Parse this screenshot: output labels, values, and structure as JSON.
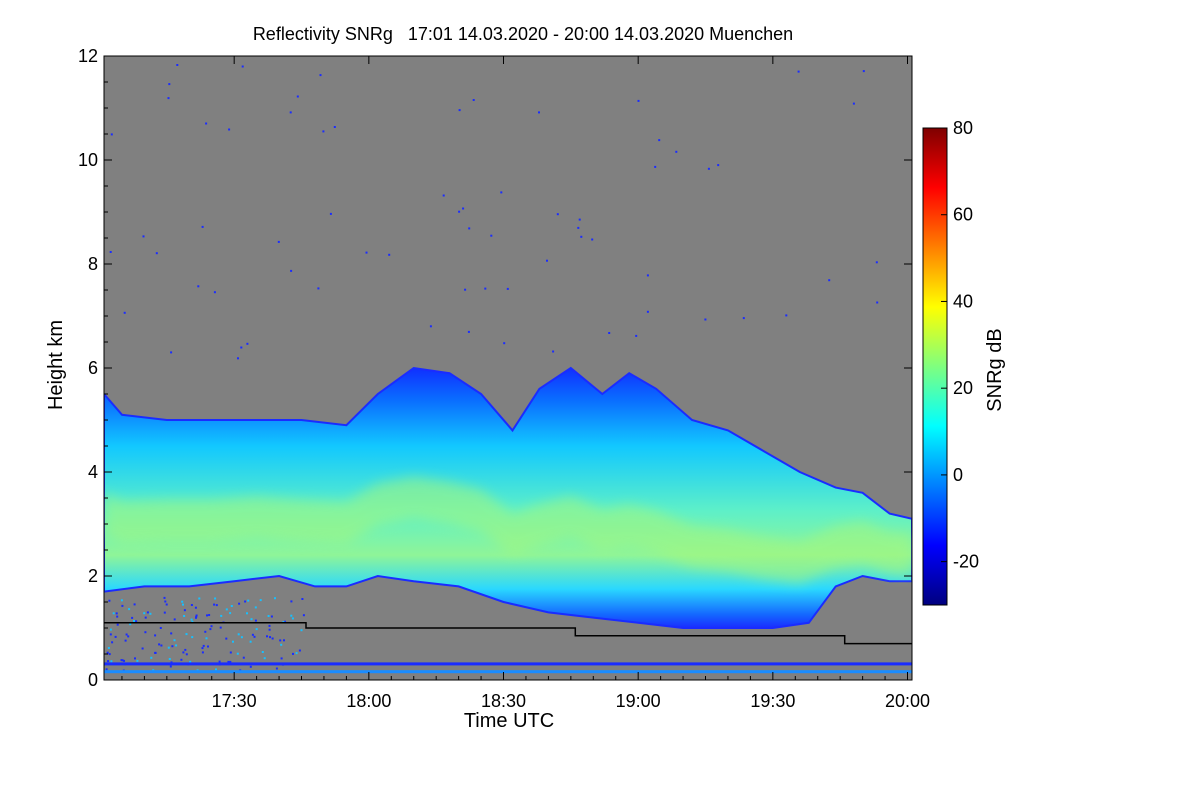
{
  "chart_data": {
    "type": "heatmap",
    "title": "Reflectivity SNRg   17:01 14.03.2020 - 20:00 14.03.2020 Muenchen",
    "xlabel": "Time UTC",
    "ylabel": "Height km",
    "xlim": [
      "17:01",
      "20:01"
    ],
    "ylim": [
      0,
      12
    ],
    "x_ticks": [
      "17:30",
      "18:00",
      "18:30",
      "19:00",
      "19:30",
      "20:00"
    ],
    "y_ticks": [
      0,
      2,
      4,
      6,
      8,
      10,
      12
    ],
    "background_color": "#808080",
    "colorbar": {
      "label": "SNRg dB",
      "range": [
        -30,
        80
      ],
      "ticks": [
        -20,
        0,
        20,
        40,
        60,
        80
      ],
      "colors": [
        "#00007f",
        "#0000ff",
        "#007fff",
        "#00ffff",
        "#7fff7f",
        "#ffff00",
        "#ff7f00",
        "#ff0000",
        "#7f0000"
      ]
    },
    "cloud_layer": {
      "description_units": "time (minutes after 17:00) vs height km",
      "top_km": [
        [
          1,
          5.5
        ],
        [
          5,
          5.1
        ],
        [
          15,
          5.0
        ],
        [
          25,
          5.0
        ],
        [
          35,
          5.0
        ],
        [
          45,
          5.0
        ],
        [
          55,
          4.9
        ],
        [
          62,
          5.5
        ],
        [
          70,
          6.0
        ],
        [
          78,
          5.9
        ],
        [
          85,
          5.5
        ],
        [
          92,
          4.8
        ],
        [
          98,
          5.6
        ],
        [
          105,
          6.0
        ],
        [
          112,
          5.5
        ],
        [
          118,
          5.9
        ],
        [
          124,
          5.6
        ],
        [
          132,
          5.0
        ],
        [
          140,
          4.8
        ],
        [
          148,
          4.4
        ],
        [
          156,
          4.0
        ],
        [
          164,
          3.7
        ],
        [
          170,
          3.6
        ],
        [
          176,
          3.2
        ],
        [
          181,
          3.1
        ]
      ],
      "base_km": [
        [
          1,
          1.7
        ],
        [
          10,
          1.8
        ],
        [
          20,
          1.8
        ],
        [
          30,
          1.9
        ],
        [
          40,
          2.0
        ],
        [
          48,
          1.8
        ],
        [
          55,
          1.8
        ],
        [
          62,
          2.0
        ],
        [
          70,
          1.9
        ],
        [
          80,
          1.8
        ],
        [
          90,
          1.5
        ],
        [
          100,
          1.3
        ],
        [
          110,
          1.2
        ],
        [
          120,
          1.1
        ],
        [
          130,
          1.0
        ],
        [
          140,
          1.0
        ],
        [
          150,
          1.0
        ],
        [
          158,
          1.1
        ],
        [
          164,
          1.8
        ],
        [
          170,
          2.0
        ],
        [
          176,
          1.9
        ],
        [
          181,
          1.9
        ]
      ],
      "core_max_db": 35
    },
    "black_line_km": [
      [
        1,
        1.1
      ],
      [
        46,
        1.1
      ],
      [
        46,
        1.0
      ],
      [
        106,
        1.0
      ],
      [
        106,
        0.85
      ],
      [
        166,
        0.85
      ],
      [
        166,
        0.7
      ],
      [
        181,
        0.7
      ]
    ],
    "near_surface_bands_km": [
      0.3,
      0.15
    ]
  }
}
